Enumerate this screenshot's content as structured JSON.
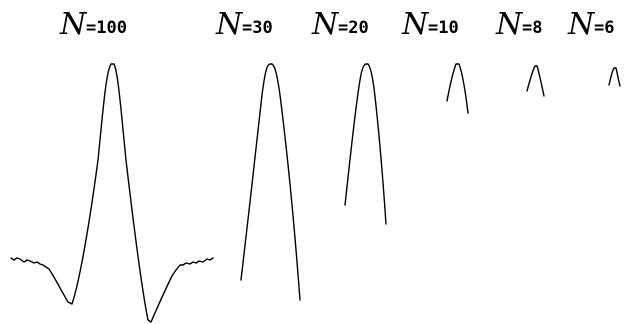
{
  "panels": [
    {
      "id": "n100",
      "symbol": "N",
      "value_text": "=100",
      "n": 100
    },
    {
      "id": "n30",
      "symbol": "N",
      "value_text": "=30",
      "n": 30
    },
    {
      "id": "n20",
      "symbol": "N",
      "value_text": "=20",
      "n": 20
    },
    {
      "id": "n10",
      "symbol": "N",
      "value_text": "=10",
      "n": 10
    },
    {
      "id": "n8",
      "symbol": "N",
      "value_text": "=8",
      "n": 8
    },
    {
      "id": "n6",
      "symbol": "N",
      "value_text": "=6",
      "n": 6
    }
  ]
}
